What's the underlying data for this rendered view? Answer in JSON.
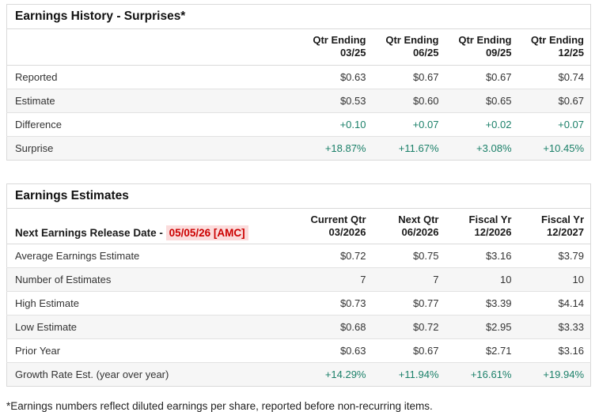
{
  "colors": {
    "green": "#1b8069",
    "red": "#cc0000",
    "red_bg": "#fbdcdc"
  },
  "earnings_history": {
    "title": "Earnings History - Surprises*",
    "columns": [
      {
        "line1": "Qtr Ending",
        "line2": "03/25"
      },
      {
        "line1": "Qtr Ending",
        "line2": "06/25"
      },
      {
        "line1": "Qtr Ending",
        "line2": "09/25"
      },
      {
        "line1": "Qtr Ending",
        "line2": "12/25"
      }
    ],
    "rows": [
      {
        "label": "Reported",
        "values": [
          "$0.63",
          "$0.67",
          "$0.67",
          "$0.74"
        ],
        "green": false
      },
      {
        "label": "Estimate",
        "values": [
          "$0.53",
          "$0.60",
          "$0.65",
          "$0.67"
        ],
        "green": false
      },
      {
        "label": "Difference",
        "values": [
          "+0.10",
          "+0.07",
          "+0.02",
          "+0.07"
        ],
        "green": true
      },
      {
        "label": "Surprise",
        "values": [
          "+18.87%",
          "+11.67%",
          "+3.08%",
          "+10.45%"
        ],
        "green": true
      }
    ]
  },
  "earnings_estimates": {
    "title": "Earnings Estimates",
    "release_label": "Next Earnings Release Date - ",
    "release_date": "05/05/26 [AMC]",
    "columns": [
      {
        "line1": "Current Qtr",
        "line2": "03/2026"
      },
      {
        "line1": "Next Qtr",
        "line2": "06/2026"
      },
      {
        "line1": "Fiscal Yr",
        "line2": "12/2026"
      },
      {
        "line1": "Fiscal Yr",
        "line2": "12/2027"
      }
    ],
    "rows": [
      {
        "label": "Average Earnings Estimate",
        "values": [
          "$0.72",
          "$0.75",
          "$3.16",
          "$3.79"
        ],
        "green": false
      },
      {
        "label": "Number of Estimates",
        "values": [
          "7",
          "7",
          "10",
          "10"
        ],
        "green": false
      },
      {
        "label": "High Estimate",
        "values": [
          "$0.73",
          "$0.77",
          "$3.39",
          "$4.14"
        ],
        "green": false
      },
      {
        "label": "Low Estimate",
        "values": [
          "$0.68",
          "$0.72",
          "$2.95",
          "$3.33"
        ],
        "green": false
      },
      {
        "label": "Prior Year",
        "values": [
          "$0.63",
          "$0.67",
          "$2.71",
          "$3.16"
        ],
        "green": false
      },
      {
        "label": "Growth Rate Est. (year over year)",
        "values": [
          "+14.29%",
          "+11.94%",
          "+16.61%",
          "+19.94%"
        ],
        "green": true
      }
    ]
  },
  "footnote": "*Earnings numbers reflect diluted earnings per share, reported before non-recurring items."
}
